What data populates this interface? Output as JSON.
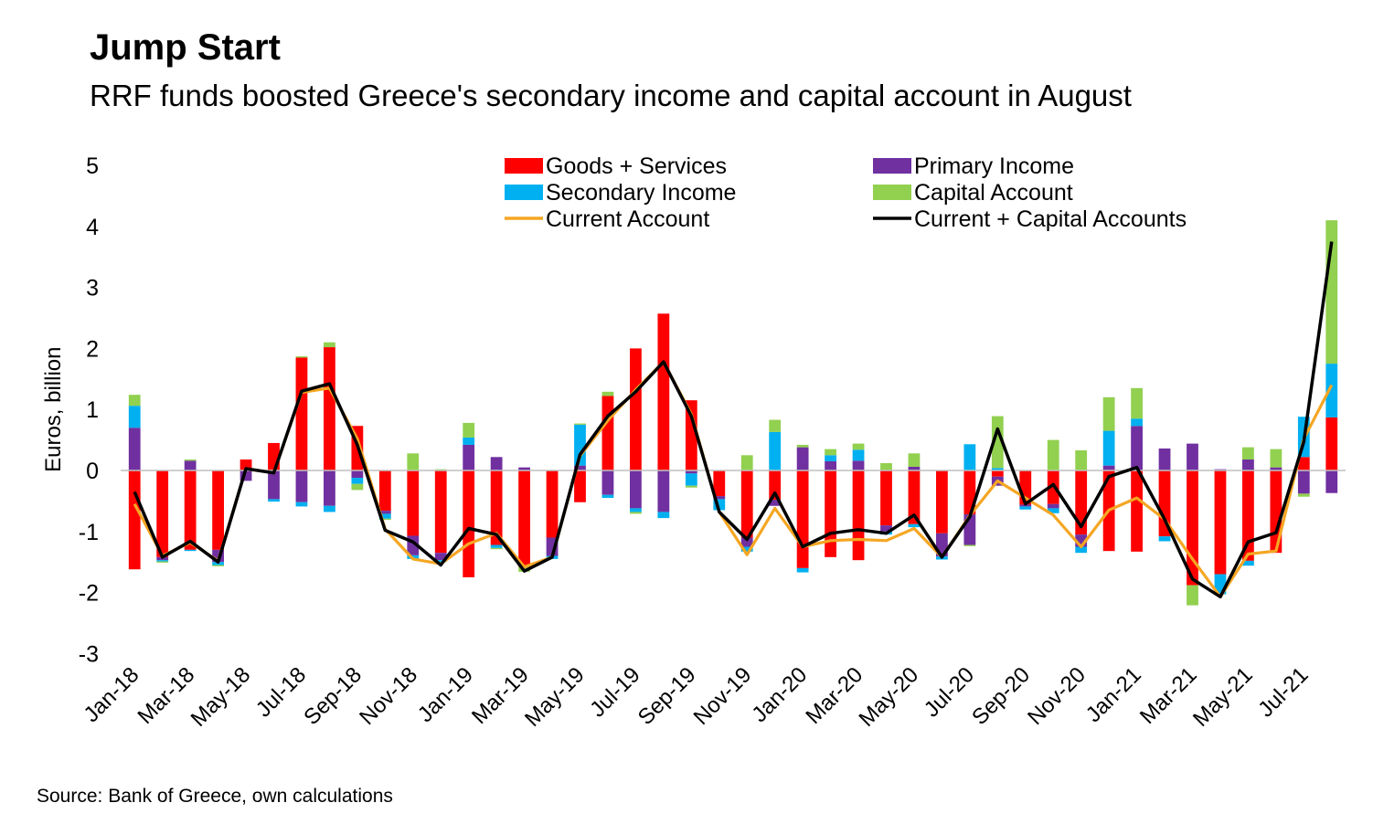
{
  "title": "Jump Start",
  "subtitle": "RRF funds boosted Greece's secondary income and capital account in August",
  "source": "Source: Bank of Greece, own calculations",
  "chart_data": {
    "type": "bar",
    "stacked": true,
    "ylabel": "Euros, billion",
    "ylim": [
      -3,
      5
    ],
    "yticks": [
      -3,
      -2,
      -1,
      0,
      1,
      2,
      3,
      4,
      5
    ],
    "grid": false,
    "legend_position": "top",
    "categories": [
      "Jan-18",
      "Feb-18",
      "Mar-18",
      "Apr-18",
      "May-18",
      "Jun-18",
      "Jul-18",
      "Aug-18",
      "Sep-18",
      "Oct-18",
      "Nov-18",
      "Dec-18",
      "Jan-19",
      "Feb-19",
      "Mar-19",
      "Apr-19",
      "May-19",
      "Jun-19",
      "Jul-19",
      "Aug-19",
      "Sep-19",
      "Oct-19",
      "Nov-19",
      "Dec-19",
      "Jan-20",
      "Feb-20",
      "Mar-20",
      "Apr-20",
      "May-20",
      "Jun-20",
      "Jul-20",
      "Aug-20",
      "Sep-20",
      "Oct-20",
      "Nov-20",
      "Dec-20",
      "Jan-21",
      "Feb-21",
      "Mar-21",
      "Apr-21",
      "May-21",
      "Jun-21",
      "Jul-21",
      "Aug-21"
    ],
    "x_tick_labels": [
      "Jan-18",
      "Mar-18",
      "May-18",
      "Jul-18",
      "Sep-18",
      "Nov-18",
      "Jan-19",
      "Mar-19",
      "May-19",
      "Jul-19",
      "Sep-19",
      "Nov-19",
      "Jan-20",
      "Mar-20",
      "May-20",
      "Jul-20",
      "Sep-20",
      "Nov-20",
      "Jan-21",
      "Mar-21",
      "May-21",
      "Jul-21"
    ],
    "series": [
      {
        "name": "Goods + Services",
        "kind": "bar",
        "color": "#ff0000",
        "values": [
          -1.62,
          -1.42,
          -1.3,
          -1.3,
          0.18,
          0.45,
          1.85,
          2.02,
          0.73,
          -0.66,
          -1.07,
          -1.35,
          -1.75,
          -1.22,
          -1.58,
          -1.1,
          -0.52,
          1.22,
          2.0,
          2.57,
          1.15,
          -0.42,
          -1.1,
          -0.48,
          -1.6,
          -1.42,
          -1.47,
          -0.9,
          -0.88,
          -1.03,
          -0.72,
          -0.1,
          -0.56,
          -0.55,
          -1.05,
          -1.32,
          -1.33,
          -1.08,
          -1.88,
          -1.7,
          -1.48,
          -1.35,
          0.22,
          0.87
        ]
      },
      {
        "name": "Primary Income",
        "kind": "bar",
        "color": "#7030a0",
        "values": [
          0.7,
          -0.05,
          0.16,
          -0.2,
          -0.17,
          -0.47,
          -0.52,
          -0.58,
          -0.12,
          -0.05,
          -0.32,
          -0.12,
          0.42,
          0.22,
          0.05,
          -0.3,
          0.08,
          -0.4,
          -0.62,
          -0.68,
          -0.05,
          -0.05,
          -0.15,
          -0.1,
          0.38,
          0.15,
          0.16,
          -0.1,
          0.06,
          -0.38,
          -0.5,
          -0.15,
          -0.03,
          -0.07,
          -0.2,
          0.08,
          0.73,
          0.36,
          0.44,
          0.02,
          0.18,
          0.05,
          -0.38,
          -0.37
        ]
      },
      {
        "name": "Secondary Income",
        "kind": "bar",
        "color": "#00b0f0",
        "values": [
          0.36,
          -0.02,
          -0.02,
          -0.05,
          0.0,
          -0.04,
          -0.07,
          -0.1,
          -0.1,
          -0.08,
          -0.06,
          -0.03,
          0.12,
          -0.05,
          0.0,
          -0.05,
          0.67,
          -0.05,
          -0.06,
          -0.1,
          -0.2,
          -0.18,
          -0.08,
          0.63,
          -0.07,
          0.1,
          0.18,
          -0.05,
          -0.05,
          -0.05,
          0.43,
          0.04,
          -0.05,
          -0.08,
          -0.1,
          0.57,
          0.12,
          -0.08,
          0.0,
          -0.33,
          -0.08,
          0.0,
          0.66,
          0.88
        ]
      },
      {
        "name": "Capital Account",
        "kind": "bar",
        "color": "#92d050",
        "values": [
          0.18,
          -0.02,
          0.02,
          -0.02,
          0.0,
          0.0,
          0.02,
          0.08,
          -0.1,
          -0.02,
          0.28,
          0.02,
          0.24,
          -0.02,
          -0.08,
          0.0,
          0.02,
          0.07,
          -0.03,
          0.0,
          -0.03,
          0.0,
          0.25,
          0.2,
          0.04,
          0.1,
          0.1,
          0.12,
          0.22,
          0.0,
          -0.02,
          0.85,
          0.0,
          0.5,
          0.33,
          0.55,
          0.5,
          0.0,
          -0.33,
          0.0,
          0.2,
          0.3,
          -0.05,
          2.35
        ]
      },
      {
        "name": "Current Account",
        "kind": "line",
        "color": "#f5a623",
        "values": [
          -0.55,
          -1.4,
          -1.18,
          -1.48,
          0.03,
          -0.04,
          1.28,
          1.35,
          0.52,
          -0.96,
          -1.45,
          -1.53,
          -1.2,
          -1.03,
          -1.58,
          -1.42,
          0.24,
          0.82,
          1.32,
          1.78,
          0.92,
          -0.68,
          -1.38,
          -0.62,
          -1.25,
          -1.15,
          -1.13,
          -1.15,
          -0.95,
          -1.42,
          -0.74,
          -0.17,
          -0.45,
          -0.73,
          -1.25,
          -0.65,
          -0.45,
          -0.8,
          -1.45,
          -2.07,
          -1.37,
          -1.32,
          0.52,
          1.4
        ]
      },
      {
        "name": "Current + Capital Accounts",
        "kind": "line",
        "color": "#000000",
        "values": [
          -0.35,
          -1.42,
          -1.16,
          -1.5,
          0.03,
          -0.04,
          1.3,
          1.42,
          0.42,
          -0.98,
          -1.17,
          -1.55,
          -0.95,
          -1.05,
          -1.65,
          -1.42,
          0.26,
          0.89,
          1.29,
          1.78,
          0.89,
          -0.68,
          -1.13,
          -0.37,
          -1.25,
          -1.03,
          -0.97,
          -1.03,
          -0.73,
          -1.42,
          -0.76,
          0.68,
          -0.55,
          -0.23,
          -0.92,
          -0.1,
          0.05,
          -0.8,
          -1.78,
          -2.07,
          -1.17,
          -1.02,
          0.47,
          3.75
        ]
      }
    ]
  }
}
